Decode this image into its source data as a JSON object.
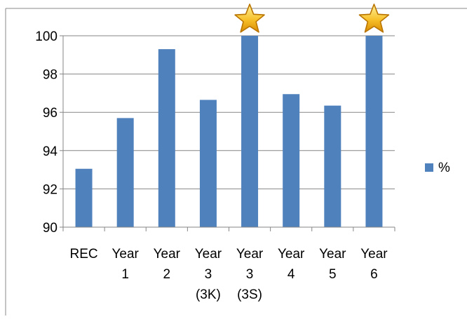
{
  "chart_data": {
    "type": "bar",
    "categories": [
      [
        "REC"
      ],
      [
        "Year",
        "1"
      ],
      [
        "Year",
        "2"
      ],
      [
        "Year",
        "3",
        "(3K)"
      ],
      [
        "Year",
        "3",
        "(3S)"
      ],
      [
        "Year",
        "4"
      ],
      [
        "Year",
        "5"
      ],
      [
        "Year",
        "6"
      ]
    ],
    "series": [
      {
        "name": "%",
        "values": [
          93.05,
          95.7,
          99.3,
          96.65,
          100,
          96.95,
          96.35,
          100
        ],
        "color": "#4F81BD"
      }
    ],
    "ylim": [
      90,
      100
    ],
    "yticks": [
      90,
      92,
      94,
      96,
      98,
      100
    ],
    "grid": true,
    "legend": "right",
    "title": "",
    "xlabel": "",
    "ylabel": "",
    "annotations": [
      {
        "type": "star-icon",
        "category_index": 4
      },
      {
        "type": "star-icon",
        "category_index": 7
      }
    ]
  }
}
